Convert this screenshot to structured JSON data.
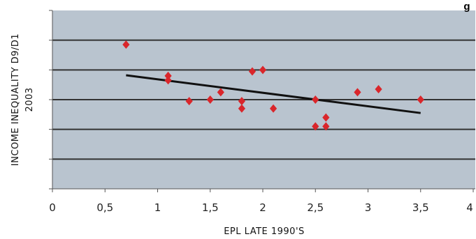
{
  "chart_data": {
    "type": "scatter",
    "title_fragment": "g",
    "xlabel": "EPL LATE 1990'S",
    "ylabel_line1": "INCOME INEQUALITY D9/D1",
    "ylabel_line2": "2003",
    "xlim": [
      0,
      4
    ],
    "x_ticks": [
      {
        "value": 0,
        "label": "0"
      },
      {
        "value": 0.5,
        "label": "0,5"
      },
      {
        "value": 1,
        "label": "1"
      },
      {
        "value": 1.5,
        "label": "1,5"
      },
      {
        "value": 2,
        "label": "2"
      },
      {
        "value": 2.5,
        "label": "2,5"
      },
      {
        "value": 3,
        "label": "3"
      },
      {
        "value": 3.5,
        "label": "3,5"
      },
      {
        "value": 4,
        "label": "4"
      }
    ],
    "y_gridlines": 6,
    "y_tick_labels_visible": false,
    "points": [
      {
        "x": 0.7,
        "y": 4.85
      },
      {
        "x": 1.1,
        "y": 3.8
      },
      {
        "x": 1.1,
        "y": 3.65
      },
      {
        "x": 1.3,
        "y": 2.95
      },
      {
        "x": 1.5,
        "y": 3.0
      },
      {
        "x": 1.6,
        "y": 3.25
      },
      {
        "x": 1.8,
        "y": 2.95
      },
      {
        "x": 1.8,
        "y": 2.7
      },
      {
        "x": 1.9,
        "y": 3.95
      },
      {
        "x": 2.0,
        "y": 4.0
      },
      {
        "x": 2.1,
        "y": 2.7
      },
      {
        "x": 2.5,
        "y": 3.0
      },
      {
        "x": 2.5,
        "y": 2.1
      },
      {
        "x": 2.6,
        "y": 2.4
      },
      {
        "x": 2.6,
        "y": 2.1
      },
      {
        "x": 2.9,
        "y": 3.25
      },
      {
        "x": 3.1,
        "y": 3.35
      },
      {
        "x": 3.5,
        "y": 3.0
      }
    ],
    "trendline": {
      "x": [
        0.7,
        3.5
      ],
      "y": [
        3.82,
        2.55
      ]
    },
    "grid": true,
    "legend": "none",
    "colors": {
      "background": "#B9C4CF",
      "points": "#D9262B",
      "trendline": "#111111",
      "gridlines": "#333333"
    }
  }
}
